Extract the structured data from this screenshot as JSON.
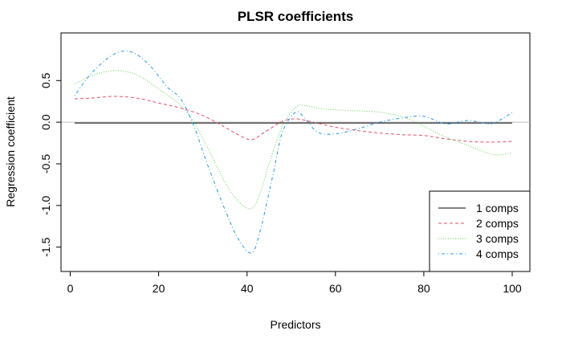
{
  "chart_data": {
    "type": "line",
    "title": "PLSR coefficients",
    "xlabel": "Predictors",
    "ylabel": "Regression coefficient",
    "xlim": [
      1,
      100
    ],
    "ylim": [
      -1.6,
      0.85
    ],
    "xticks": [
      0,
      20,
      40,
      60,
      80,
      100
    ],
    "yticks": [
      -1.5,
      -1.0,
      -0.5,
      0.0,
      0.5
    ],
    "ytick_labels": [
      "-1.5",
      "-1.0",
      "-0.5",
      "0.0",
      "0.5"
    ],
    "hline": 0,
    "hline_color": "#bebebe",
    "legend_position": "bottom-right",
    "series": [
      {
        "name": "1 comps",
        "color": "#000000",
        "dash": "solid",
        "x": [
          1,
          100
        ],
        "y": [
          -0.01,
          -0.01
        ]
      },
      {
        "name": "2 comps",
        "color": "#DF536B",
        "dash": "dashed",
        "x": [
          1,
          5,
          10,
          15,
          20,
          25,
          30,
          35,
          38,
          41,
          44,
          48,
          51,
          55,
          60,
          65,
          70,
          75,
          80,
          85,
          90,
          95,
          100
        ],
        "y": [
          0.28,
          0.29,
          0.31,
          0.29,
          0.23,
          0.17,
          0.08,
          -0.06,
          -0.15,
          -0.21,
          -0.12,
          0.01,
          0.04,
          0.0,
          -0.06,
          -0.1,
          -0.13,
          -0.15,
          -0.16,
          -0.2,
          -0.23,
          -0.24,
          -0.23
        ]
      },
      {
        "name": "3 comps",
        "color": "#61D04F",
        "dash": "dotted",
        "x": [
          1,
          5,
          10,
          15,
          20,
          25,
          28,
          31,
          35,
          38,
          41,
          43,
          45,
          48,
          51,
          53,
          57,
          63,
          70,
          76,
          80,
          85,
          90,
          95,
          98,
          100
        ],
        "y": [
          0.46,
          0.56,
          0.62,
          0.57,
          0.4,
          0.2,
          0.0,
          -0.3,
          -0.72,
          -0.95,
          -1.04,
          -0.85,
          -0.5,
          -0.05,
          0.18,
          0.2,
          0.16,
          0.14,
          0.12,
          0.05,
          -0.05,
          -0.18,
          -0.28,
          -0.38,
          -0.39,
          -0.36
        ]
      },
      {
        "name": "4 comps",
        "color": "#2297E6",
        "dash": "dotdash",
        "x": [
          1,
          5,
          10,
          14,
          18,
          22,
          25,
          28,
          31,
          35,
          38,
          41,
          43,
          46,
          48,
          51,
          53,
          56,
          60,
          65,
          70,
          75,
          80,
          85,
          90,
          95,
          98,
          100
        ],
        "y": [
          0.32,
          0.6,
          0.82,
          0.84,
          0.68,
          0.42,
          0.28,
          -0.05,
          -0.5,
          -1.05,
          -1.4,
          -1.57,
          -1.3,
          -0.6,
          -0.12,
          0.12,
          0.05,
          -0.12,
          -0.14,
          -0.08,
          0.0,
          0.05,
          0.07,
          -0.02,
          0.02,
          -0.02,
          0.05,
          0.12
        ]
      }
    ]
  }
}
